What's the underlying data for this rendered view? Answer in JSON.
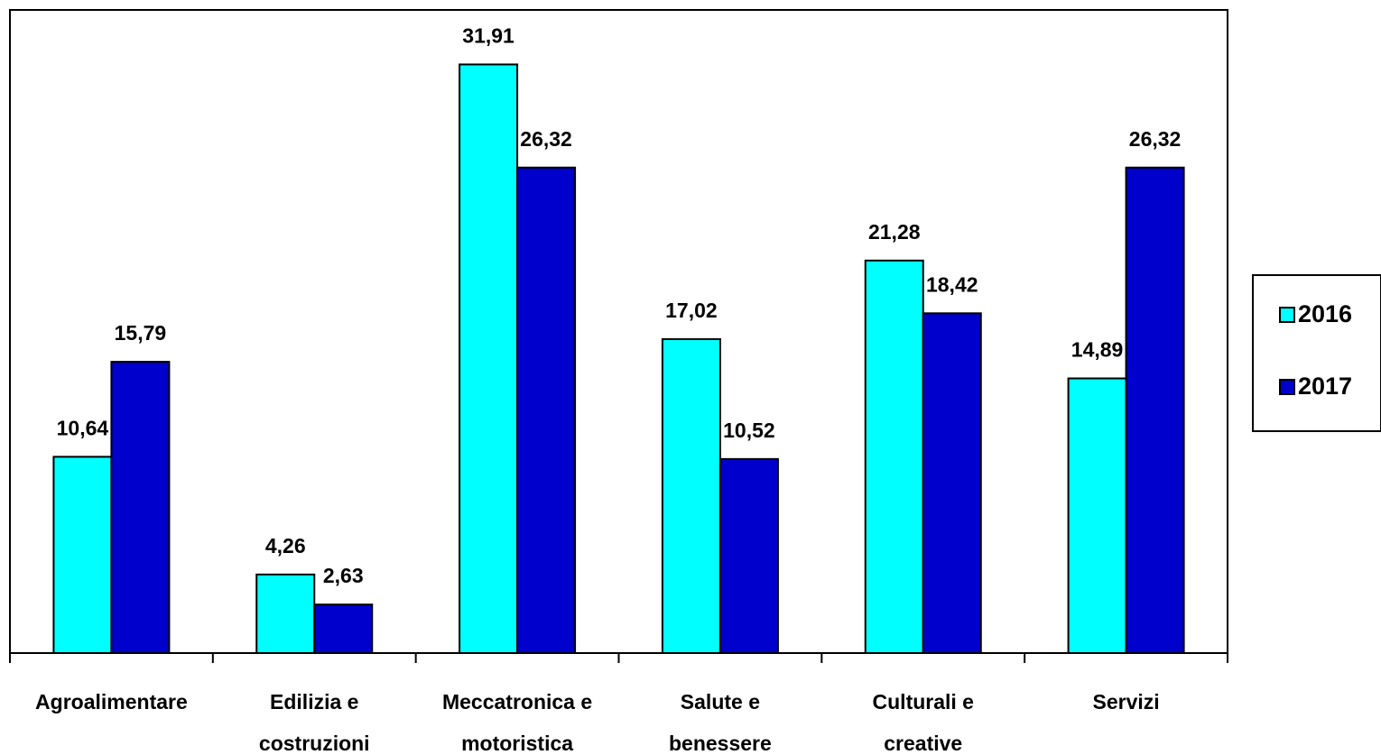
{
  "chart_data": {
    "type": "bar",
    "title": "",
    "xlabel": "",
    "ylabel": "",
    "ylim": [
      0,
      35
    ],
    "grid": false,
    "legend_position": "right",
    "categories": [
      [
        "Agroalimentare"
      ],
      [
        "Edilizia e",
        "costruzioni"
      ],
      [
        "Meccatronica e",
        "motoristica"
      ],
      [
        "Salute e",
        "benessere"
      ],
      [
        "Culturali e",
        "creative"
      ],
      [
        "Servizi"
      ]
    ],
    "series": [
      {
        "name": "2016",
        "color": "#00ffff",
        "values": [
          10.64,
          4.26,
          31.91,
          17.02,
          21.28,
          14.89
        ],
        "labels": [
          "10,64",
          "4,26",
          "31,91",
          "17,02",
          "21,28",
          "14,89"
        ]
      },
      {
        "name": "2017",
        "color": "#0000cc",
        "values": [
          15.79,
          2.63,
          26.32,
          10.52,
          18.42,
          26.32
        ],
        "labels": [
          "15,79",
          "2,63",
          "26,32",
          "10,52",
          "18,42",
          "26,32"
        ]
      }
    ]
  }
}
